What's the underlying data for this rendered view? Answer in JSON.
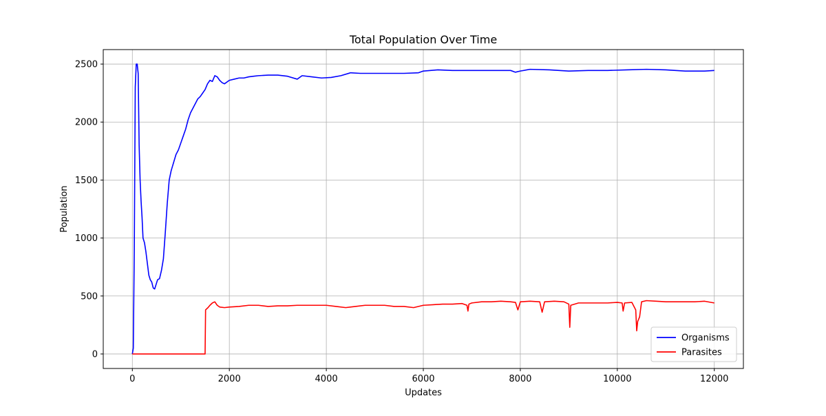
{
  "chart_data": {
    "type": "line",
    "title": "Total Population Over Time",
    "xlabel": "Updates",
    "ylabel": "Population",
    "xlim": [
      -600,
      12600
    ],
    "ylim": [
      -125,
      2625
    ],
    "xticks": [
      0,
      2000,
      4000,
      6000,
      8000,
      10000,
      12000
    ],
    "yticks": [
      0,
      500,
      1000,
      1500,
      2000,
      2500
    ],
    "grid": true,
    "legend_position": "lower-right",
    "series": [
      {
        "name": "Organisms",
        "color": "#0000ff",
        "points": [
          [
            0,
            0
          ],
          [
            20,
            50
          ],
          [
            40,
            900
          ],
          [
            60,
            2300
          ],
          [
            80,
            2500
          ],
          [
            100,
            2500
          ],
          [
            120,
            2420
          ],
          [
            140,
            1800
          ],
          [
            160,
            1500
          ],
          [
            180,
            1320
          ],
          [
            200,
            1180
          ],
          [
            220,
            1000
          ],
          [
            250,
            960
          ],
          [
            280,
            880
          ],
          [
            310,
            780
          ],
          [
            340,
            680
          ],
          [
            370,
            640
          ],
          [
            400,
            620
          ],
          [
            430,
            570
          ],
          [
            460,
            560
          ],
          [
            490,
            600
          ],
          [
            520,
            640
          ],
          [
            560,
            650
          ],
          [
            600,
            720
          ],
          [
            640,
            820
          ],
          [
            680,
            1050
          ],
          [
            720,
            1300
          ],
          [
            760,
            1500
          ],
          [
            800,
            1580
          ],
          [
            850,
            1650
          ],
          [
            900,
            1720
          ],
          [
            950,
            1760
          ],
          [
            1000,
            1820
          ],
          [
            1050,
            1880
          ],
          [
            1100,
            1940
          ],
          [
            1150,
            2020
          ],
          [
            1200,
            2080
          ],
          [
            1250,
            2120
          ],
          [
            1300,
            2160
          ],
          [
            1350,
            2200
          ],
          [
            1400,
            2220
          ],
          [
            1450,
            2250
          ],
          [
            1500,
            2280
          ],
          [
            1550,
            2330
          ],
          [
            1600,
            2360
          ],
          [
            1650,
            2350
          ],
          [
            1700,
            2400
          ],
          [
            1750,
            2390
          ],
          [
            1800,
            2360
          ],
          [
            1850,
            2340
          ],
          [
            1900,
            2330
          ],
          [
            2000,
            2360
          ],
          [
            2100,
            2370
          ],
          [
            2200,
            2380
          ],
          [
            2300,
            2380
          ],
          [
            2400,
            2390
          ],
          [
            2500,
            2395
          ],
          [
            2600,
            2400
          ],
          [
            2800,
            2405
          ],
          [
            3000,
            2405
          ],
          [
            3200,
            2395
          ],
          [
            3400,
            2370
          ],
          [
            3500,
            2400
          ],
          [
            3700,
            2390
          ],
          [
            3900,
            2380
          ],
          [
            4100,
            2385
          ],
          [
            4300,
            2400
          ],
          [
            4500,
            2425
          ],
          [
            4700,
            2420
          ],
          [
            5000,
            2420
          ],
          [
            5300,
            2420
          ],
          [
            5600,
            2420
          ],
          [
            5900,
            2425
          ],
          [
            6000,
            2440
          ],
          [
            6300,
            2450
          ],
          [
            6600,
            2445
          ],
          [
            7000,
            2445
          ],
          [
            7400,
            2445
          ],
          [
            7800,
            2445
          ],
          [
            7900,
            2430
          ],
          [
            8000,
            2440
          ],
          [
            8200,
            2455
          ],
          [
            8600,
            2450
          ],
          [
            9000,
            2440
          ],
          [
            9400,
            2445
          ],
          [
            9800,
            2445
          ],
          [
            10200,
            2450
          ],
          [
            10600,
            2455
          ],
          [
            11000,
            2450
          ],
          [
            11400,
            2440
          ],
          [
            11800,
            2440
          ],
          [
            12000,
            2445
          ]
        ]
      },
      {
        "name": "Parasites",
        "color": "#ff0000",
        "points": [
          [
            0,
            0
          ],
          [
            1480,
            0
          ],
          [
            1500,
            0
          ],
          [
            1510,
            380
          ],
          [
            1560,
            400
          ],
          [
            1600,
            420
          ],
          [
            1650,
            440
          ],
          [
            1700,
            450
          ],
          [
            1750,
            420
          ],
          [
            1800,
            405
          ],
          [
            1900,
            400
          ],
          [
            2000,
            405
          ],
          [
            2200,
            410
          ],
          [
            2400,
            420
          ],
          [
            2600,
            420
          ],
          [
            2800,
            410
          ],
          [
            3000,
            415
          ],
          [
            3200,
            415
          ],
          [
            3400,
            420
          ],
          [
            3600,
            420
          ],
          [
            3800,
            420
          ],
          [
            4000,
            420
          ],
          [
            4200,
            410
          ],
          [
            4400,
            400
          ],
          [
            4600,
            410
          ],
          [
            4800,
            420
          ],
          [
            5000,
            420
          ],
          [
            5200,
            420
          ],
          [
            5400,
            410
          ],
          [
            5600,
            410
          ],
          [
            5800,
            400
          ],
          [
            6000,
            420
          ],
          [
            6200,
            425
          ],
          [
            6400,
            430
          ],
          [
            6600,
            430
          ],
          [
            6800,
            435
          ],
          [
            6900,
            420
          ],
          [
            6920,
            370
          ],
          [
            6940,
            430
          ],
          [
            7000,
            440
          ],
          [
            7200,
            450
          ],
          [
            7400,
            450
          ],
          [
            7600,
            455
          ],
          [
            7800,
            450
          ],
          [
            7900,
            445
          ],
          [
            7950,
            380
          ],
          [
            8000,
            450
          ],
          [
            8200,
            455
          ],
          [
            8400,
            450
          ],
          [
            8450,
            360
          ],
          [
            8500,
            450
          ],
          [
            8700,
            455
          ],
          [
            8900,
            450
          ],
          [
            9000,
            430
          ],
          [
            9020,
            230
          ],
          [
            9040,
            420
          ],
          [
            9200,
            440
          ],
          [
            9400,
            440
          ],
          [
            9600,
            440
          ],
          [
            9800,
            440
          ],
          [
            10000,
            445
          ],
          [
            10100,
            440
          ],
          [
            10120,
            370
          ],
          [
            10150,
            440
          ],
          [
            10300,
            445
          ],
          [
            10380,
            380
          ],
          [
            10400,
            200
          ],
          [
            10420,
            280
          ],
          [
            10460,
            320
          ],
          [
            10500,
            450
          ],
          [
            10600,
            460
          ],
          [
            10800,
            455
          ],
          [
            11000,
            450
          ],
          [
            11200,
            450
          ],
          [
            11400,
            450
          ],
          [
            11600,
            450
          ],
          [
            11800,
            455
          ],
          [
            12000,
            440
          ]
        ]
      }
    ]
  }
}
